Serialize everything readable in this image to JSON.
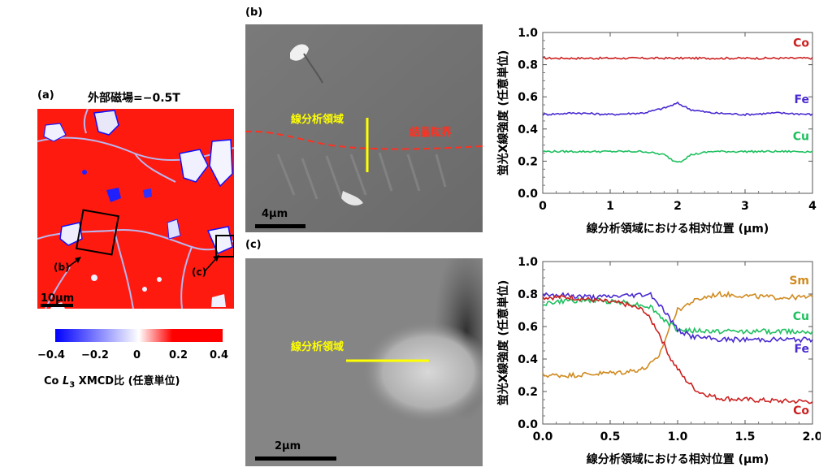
{
  "panel_a": {
    "label": "(a)",
    "title": "外部磁場=−0.5T",
    "scale_bar": "10μm",
    "inset_b_label": "(b)",
    "inset_c_label": "(c)",
    "colorbar": {
      "ticks": [
        "−0.4",
        "−0.2",
        "0",
        "0.2",
        "0.4"
      ],
      "label_prefix": "Co ",
      "label_italic": "L",
      "label_sub": "3",
      "label_suffix": " XMCD比 (任意単位)",
      "low_color": "#0000ff",
      "mid_color": "#ffffff",
      "high_color": "#ff0000"
    }
  },
  "panel_b": {
    "label": "(b)",
    "line_label": "線分析領域",
    "boundary_label": "結晶粒界",
    "scale_bar": "4μm"
  },
  "panel_c": {
    "label": "(c)",
    "line_label": "線分析領域",
    "scale_bar": "2μm"
  },
  "chart_data": [
    {
      "type": "line",
      "ylabel": "蛍光X線強度 (任意単位)",
      "xlabel": "線分析領域における相対位置 (μm)",
      "xlim": [
        0,
        4
      ],
      "ylim": [
        0,
        1.0
      ],
      "xticks": [
        "0",
        "1",
        "2",
        "3",
        "4"
      ],
      "yticks": [
        "0.0",
        "0.2",
        "0.4",
        "0.6",
        "0.8",
        "1.0"
      ],
      "series": [
        {
          "name": "Co",
          "color": "#cc2020",
          "x": [
            0,
            0.5,
            1.0,
            1.5,
            2.0,
            2.5,
            3.0,
            3.5,
            4.0
          ],
          "y": [
            0.84,
            0.84,
            0.84,
            0.84,
            0.84,
            0.84,
            0.84,
            0.84,
            0.84
          ]
        },
        {
          "name": "Fe",
          "color": "#4a2ad0",
          "x": [
            0,
            0.5,
            1.0,
            1.5,
            1.8,
            2.0,
            2.2,
            2.5,
            3.0,
            3.5,
            4.0
          ],
          "y": [
            0.49,
            0.5,
            0.49,
            0.5,
            0.53,
            0.56,
            0.52,
            0.5,
            0.49,
            0.5,
            0.49
          ]
        },
        {
          "name": "Cu",
          "color": "#20c060",
          "x": [
            0,
            0.5,
            1.0,
            1.5,
            1.8,
            1.95,
            2.05,
            2.2,
            2.5,
            3.0,
            3.5,
            4.0
          ],
          "y": [
            0.26,
            0.26,
            0.26,
            0.26,
            0.24,
            0.2,
            0.2,
            0.24,
            0.26,
            0.26,
            0.26,
            0.26
          ]
        }
      ]
    },
    {
      "type": "line",
      "ylabel": "蛍光X線強度 (任意単位)",
      "xlabel": "線分析領域における相対位置 (μm)",
      "xlim": [
        0,
        2.0
      ],
      "ylim": [
        0,
        1.0
      ],
      "xticks": [
        "0.0",
        "0.5",
        "1.0",
        "1.5",
        "2.0"
      ],
      "yticks": [
        "0.0",
        "0.2",
        "0.4",
        "0.6",
        "0.8",
        "1.0"
      ],
      "series": [
        {
          "name": "Sm",
          "color": "#d08a20",
          "x": [
            0,
            0.2,
            0.4,
            0.6,
            0.75,
            0.85,
            0.9,
            0.95,
            1.0,
            1.1,
            1.2,
            1.3,
            1.5,
            1.7,
            2.0
          ],
          "y": [
            0.3,
            0.3,
            0.31,
            0.32,
            0.34,
            0.4,
            0.5,
            0.62,
            0.7,
            0.75,
            0.78,
            0.8,
            0.79,
            0.78,
            0.78
          ]
        },
        {
          "name": "Cu",
          "color": "#20c060",
          "x": [
            0,
            0.2,
            0.4,
            0.6,
            0.8,
            0.9,
            1.0,
            1.2,
            1.5,
            1.8,
            2.0
          ],
          "y": [
            0.74,
            0.76,
            0.76,
            0.75,
            0.72,
            0.64,
            0.58,
            0.57,
            0.57,
            0.57,
            0.57
          ]
        },
        {
          "name": "Fe",
          "color": "#4a2ad0",
          "x": [
            0,
            0.2,
            0.4,
            0.6,
            0.8,
            0.9,
            1.0,
            1.1,
            1.3,
            1.5,
            1.8,
            2.0
          ],
          "y": [
            0.8,
            0.79,
            0.78,
            0.79,
            0.8,
            0.7,
            0.58,
            0.54,
            0.52,
            0.52,
            0.52,
            0.52
          ]
        },
        {
          "name": "Co",
          "color": "#cc2020",
          "x": [
            0,
            0.2,
            0.4,
            0.6,
            0.75,
            0.85,
            0.95,
            1.05,
            1.15,
            1.3,
            1.5,
            1.8,
            2.0
          ],
          "y": [
            0.78,
            0.78,
            0.76,
            0.74,
            0.7,
            0.58,
            0.4,
            0.28,
            0.2,
            0.16,
            0.15,
            0.14,
            0.14
          ]
        }
      ]
    }
  ]
}
